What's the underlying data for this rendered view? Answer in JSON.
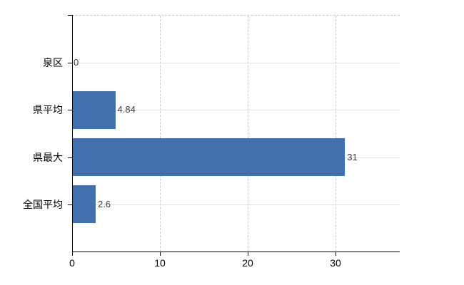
{
  "chart_data": {
    "type": "bar",
    "orientation": "horizontal",
    "title": "",
    "xlabel": "",
    "ylabel": "",
    "categories": [
      "泉区",
      "県平均",
      "県最大",
      "全国平均"
    ],
    "values": [
      0,
      4.84,
      31,
      2.6
    ],
    "value_labels": [
      "0",
      "4.84",
      "31",
      "2.6"
    ],
    "x_ticks": [
      0,
      10,
      20,
      30
    ],
    "x_tick_labels": [
      "0",
      "10",
      "20",
      "30"
    ],
    "xlim": [
      0,
      37.3
    ],
    "grid": true,
    "legend": false,
    "bar_color": "#4170ac",
    "colors": {
      "background": "#ffffff",
      "axis": "#000000",
      "category_gridline": "#dde3dd",
      "value_gridline": "#cbcbcb",
      "top_boundary": "#c9c9c9",
      "value_label": "#3d3d3d",
      "tick_label": "#000000"
    }
  }
}
